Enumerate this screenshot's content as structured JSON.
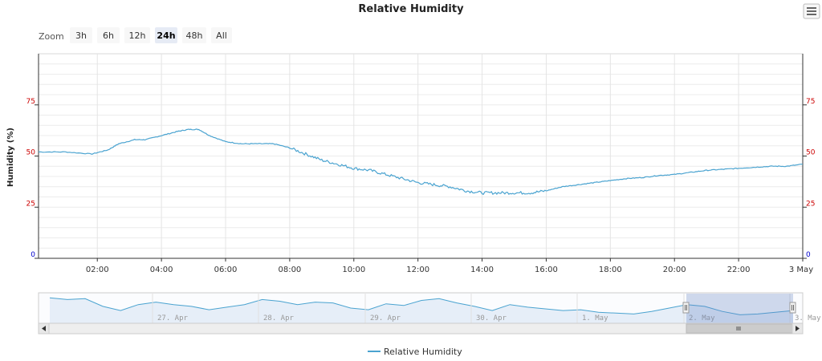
{
  "chart_data": {
    "type": "line",
    "title": "Relative Humidity",
    "ylabel": "Humidity (%)",
    "ylim": [
      0,
      100
    ],
    "y_ticks": [
      "0",
      "25",
      "50",
      "75"
    ],
    "x_ticks": [
      "02:00",
      "04:00",
      "06:00",
      "08:00",
      "10:00",
      "12:00",
      "14:00",
      "16:00",
      "18:00",
      "20:00",
      "22:00",
      "3 May"
    ],
    "xlim": [
      "2 May 00:10",
      "3 May 00:00"
    ],
    "series": [
      {
        "name": "Relative Humidity",
        "color": "#4aa3d0",
        "x": [
          "00:10",
          "01:00",
          "01:50",
          "02:20",
          "02:40",
          "03:10",
          "03:30",
          "04:00",
          "04:30",
          "04:50",
          "05:10",
          "05:30",
          "06:00",
          "06:30",
          "07:00",
          "07:30",
          "08:00",
          "08:30",
          "09:00",
          "09:30",
          "10:00",
          "10:30",
          "11:00",
          "11:30",
          "12:00",
          "12:30",
          "13:00",
          "13:30",
          "14:00",
          "14:30",
          "15:00",
          "15:30",
          "16:00",
          "16:30",
          "17:00",
          "17:30",
          "18:00",
          "18:30",
          "19:00",
          "19:30",
          "20:00",
          "20:30",
          "21:00",
          "21:30",
          "22:00",
          "22:30",
          "23:00",
          "23:30",
          "24:00"
        ],
        "y": [
          52,
          52,
          51,
          53,
          56,
          58,
          58,
          60,
          62,
          63,
          63,
          60,
          57,
          56,
          56,
          56,
          54,
          51,
          48,
          46,
          44,
          43,
          41,
          39,
          37,
          36,
          35,
          33,
          32,
          32,
          32,
          32,
          33,
          35,
          36,
          37,
          38,
          39,
          39.5,
          40.5,
          41,
          42,
          43,
          43.5,
          44,
          44.5,
          45,
          45,
          46
        ]
      }
    ],
    "navigator": {
      "labels": [
        "27. Apr",
        "28. Apr",
        "29. Apr",
        "30. Apr",
        "1. May",
        "2. May",
        "3. May"
      ],
      "y": [
        60,
        58,
        59,
        50,
        45,
        52,
        55,
        52,
        50,
        46,
        49,
        52,
        58,
        56,
        52,
        55,
        54,
        48,
        46,
        53,
        51,
        57,
        59,
        54,
        50,
        45,
        52,
        49,
        47,
        45,
        46,
        43,
        42,
        41,
        44,
        48,
        52,
        50,
        44,
        40,
        41,
        43,
        45
      ]
    },
    "legend": "bottom-center"
  },
  "zoom": {
    "label": "Zoom",
    "buttons": [
      "3h",
      "6h",
      "12h",
      "24h",
      "48h",
      "All"
    ],
    "selected": "24h"
  },
  "colors": {
    "line": "#4aa3d0",
    "tick_red": "#cc0000",
    "tick_blue": "#0000cc",
    "nav_fill": "#e6eef8",
    "nav_mask": "rgba(102,133,194,0.3)"
  },
  "menu_icon": "hamburger-menu-icon",
  "scroll_icons": [
    "scroll-left-icon",
    "scroll-right-icon",
    "scroll-grip-icon"
  ]
}
